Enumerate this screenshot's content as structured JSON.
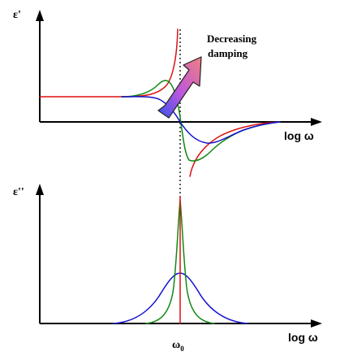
{
  "figure": {
    "top_panel": {
      "y_label": "ε'",
      "x_label": "log ω"
    },
    "bottom_panel": {
      "y_label": "ε''",
      "x_label": "log ω"
    },
    "resonance_label": "ω",
    "resonance_subscript": "0",
    "annotation": {
      "line1": "Decreasing",
      "line2": "damping"
    }
  },
  "chart_data": [
    {
      "type": "line",
      "title": "",
      "xlabel": "log ω",
      "ylabel": "ε'",
      "x_center_label": "ω0",
      "series": [
        {
          "color": "#dd1111",
          "damping": "none",
          "style": "undamped dispersion with divergence at ω0"
        },
        {
          "color": "#118811",
          "damping": "low",
          "style": "narrow dispersion"
        },
        {
          "color": "#1111cc",
          "damping": "high",
          "style": "broad dispersion"
        }
      ],
      "grid": false,
      "legend": "none",
      "annotation": "Decreasing damping"
    },
    {
      "type": "line",
      "title": "",
      "xlabel": "log ω",
      "ylabel": "ε''",
      "x_center_label": "ω0",
      "series": [
        {
          "color": "#dd1111",
          "damping": "none",
          "style": "delta-like line at ω0"
        },
        {
          "color": "#118811",
          "damping": "low",
          "style": "narrow tall peak"
        },
        {
          "color": "#1111cc",
          "damping": "high",
          "style": "broad low peak"
        }
      ],
      "grid": false,
      "legend": "none"
    }
  ],
  "colors": {
    "undamped": "#dd1111",
    "low_damping": "#118811",
    "high_damping": "#1111cc",
    "arrow_tail": "#3355ee",
    "arrow_mid": "#cc55cc",
    "arrow_head": "#f07070"
  }
}
